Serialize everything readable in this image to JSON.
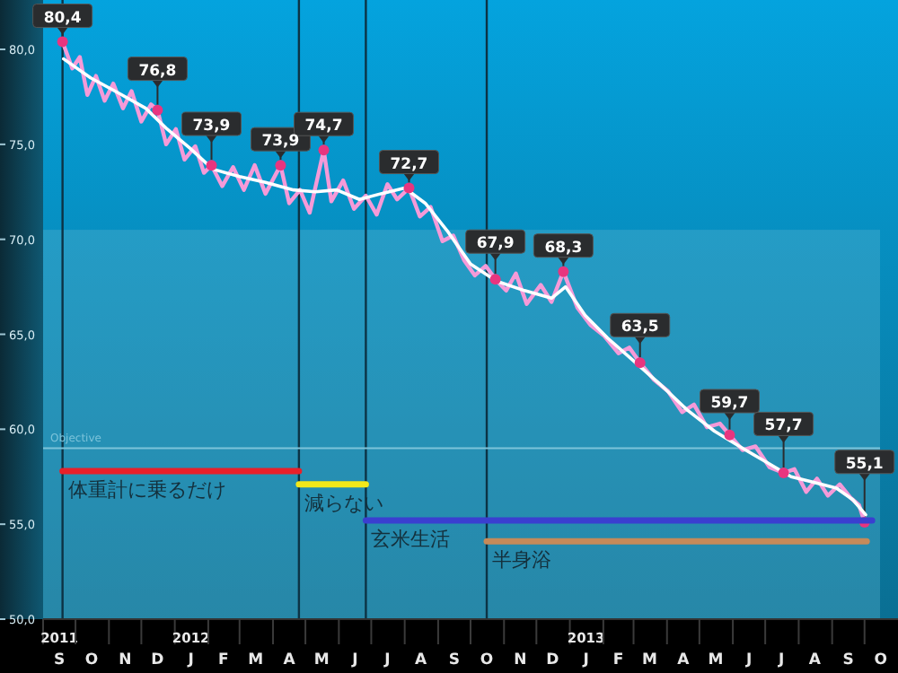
{
  "chart_data": {
    "type": "line",
    "xlim": [
      "2011-09-01",
      "2013-11-01"
    ],
    "ylim": [
      50,
      82.6
    ],
    "yticks": [
      {
        "value": 50,
        "label": "50,0"
      },
      {
        "value": 55,
        "label": "55,0"
      },
      {
        "value": 60,
        "label": "60,0"
      },
      {
        "value": 65,
        "label": "65,0"
      },
      {
        "value": 70,
        "label": "70,0"
      },
      {
        "value": 75,
        "label": "75,0"
      },
      {
        "value": 80,
        "label": "80,0"
      }
    ],
    "xticks": [
      {
        "value": "2011-09-16",
        "label": "2011\nS"
      },
      {
        "value": "2011-10-16",
        "label": "O"
      },
      {
        "value": "2011-11-16",
        "label": "N"
      },
      {
        "value": "2011-12-16",
        "label": "D"
      },
      {
        "value": "2012-01-16",
        "label": "2012\nJ"
      },
      {
        "value": "2012-02-15",
        "label": "F"
      },
      {
        "value": "2012-03-16",
        "label": "M"
      },
      {
        "value": "2012-04-16",
        "label": "A"
      },
      {
        "value": "2012-05-16",
        "label": "M"
      },
      {
        "value": "2012-06-16",
        "label": "J"
      },
      {
        "value": "2012-07-16",
        "label": "J"
      },
      {
        "value": "2012-08-16",
        "label": "A"
      },
      {
        "value": "2012-09-16",
        "label": "S"
      },
      {
        "value": "2012-10-16",
        "label": "O"
      },
      {
        "value": "2012-11-16",
        "label": "N"
      },
      {
        "value": "2012-12-16",
        "label": "D"
      },
      {
        "value": "2013-01-16",
        "label": "2013\nJ"
      },
      {
        "value": "2013-02-15",
        "label": "F"
      },
      {
        "value": "2013-03-16",
        "label": "M"
      },
      {
        "value": "2013-04-16",
        "label": "A"
      },
      {
        "value": "2013-05-16",
        "label": "M"
      },
      {
        "value": "2013-06-16",
        "label": "J"
      },
      {
        "value": "2013-07-16",
        "label": "J"
      },
      {
        "value": "2013-08-16",
        "label": "A"
      },
      {
        "value": "2013-09-16",
        "label": "S"
      },
      {
        "value": "2013-10-16",
        "label": "O"
      }
    ],
    "series": [
      {
        "color": "#f59ad8",
        "x": [
          "2011-09-19",
          "2011-09-28",
          "2011-10-05",
          "2011-10-12",
          "2011-10-20",
          "2011-10-28",
          "2011-11-05",
          "2011-11-14",
          "2011-11-22",
          "2011-12-01",
          "2011-12-10",
          "2011-12-16",
          "2011-12-24",
          "2012-01-02",
          "2012-01-10",
          "2012-01-20",
          "2012-01-28",
          "2012-02-04",
          "2012-02-14",
          "2012-02-24",
          "2012-03-05",
          "2012-03-15",
          "2012-03-25",
          "2012-04-08",
          "2012-04-16",
          "2012-04-26",
          "2012-05-05",
          "2012-05-18",
          "2012-05-25",
          "2012-06-05",
          "2012-06-15",
          "2012-06-26",
          "2012-07-06",
          "2012-07-16",
          "2012-07-25",
          "2012-08-05",
          "2012-08-15",
          "2012-08-25",
          "2012-09-05",
          "2012-09-15",
          "2012-09-25",
          "2012-10-05",
          "2012-10-15",
          "2012-10-24",
          "2012-11-03",
          "2012-11-12",
          "2012-11-22",
          "2012-12-05",
          "2012-12-15",
          "2012-12-26",
          "2013-01-08",
          "2013-01-20",
          "2013-02-02",
          "2013-02-15",
          "2013-02-25",
          "2013-03-07",
          "2013-03-20",
          "2013-04-02",
          "2013-04-15",
          "2013-04-26",
          "2013-05-08",
          "2013-05-20",
          "2013-05-29",
          "2013-06-10",
          "2013-06-22",
          "2013-07-05",
          "2013-07-18",
          "2013-07-28",
          "2013-08-08",
          "2013-08-18",
          "2013-08-28",
          "2013-09-08",
          "2013-09-18",
          "2013-09-26",
          "2013-10-01"
        ],
        "values": [
          80.4,
          79.0,
          79.6,
          77.6,
          78.6,
          77.3,
          78.2,
          76.9,
          77.8,
          76.2,
          77.1,
          76.8,
          75.0,
          75.8,
          74.2,
          74.9,
          73.5,
          73.9,
          72.8,
          73.8,
          72.6,
          73.9,
          72.4,
          73.9,
          71.9,
          72.6,
          71.4,
          74.7,
          72.0,
          73.1,
          71.6,
          72.3,
          71.3,
          72.9,
          72.1,
          72.7,
          71.2,
          71.7,
          69.9,
          70.2,
          68.9,
          68.1,
          68.6,
          67.9,
          67.3,
          68.2,
          66.6,
          67.6,
          66.7,
          68.3,
          66.4,
          65.5,
          64.9,
          64.0,
          64.3,
          63.5,
          62.6,
          62.0,
          60.9,
          61.3,
          60.1,
          60.3,
          59.7,
          58.9,
          59.1,
          58.0,
          57.7,
          57.9,
          56.7,
          57.4,
          56.5,
          57.1,
          56.4,
          56.0,
          55.1
        ]
      },
      {
        "color": "#ffffff",
        "x": [
          "2011-09-20",
          "2011-10-15",
          "2011-11-10",
          "2011-12-05",
          "2011-12-25",
          "2012-01-15",
          "2012-02-05",
          "2012-03-01",
          "2012-03-25",
          "2012-04-20",
          "2012-05-10",
          "2012-05-30",
          "2012-06-20",
          "2012-07-10",
          "2012-08-01",
          "2012-08-20",
          "2012-09-10",
          "2012-10-01",
          "2012-10-25",
          "2012-11-20",
          "2012-12-15",
          "2012-12-28",
          "2013-01-15",
          "2013-02-05",
          "2013-03-01",
          "2013-03-25",
          "2013-04-20",
          "2013-05-15",
          "2013-06-10",
          "2013-07-01",
          "2013-07-25",
          "2013-08-15",
          "2013-09-05",
          "2013-09-20",
          "2013-10-02"
        ],
        "values": [
          79.5,
          78.5,
          77.7,
          76.9,
          75.8,
          74.8,
          73.7,
          73.3,
          73.0,
          72.6,
          72.5,
          72.6,
          72.1,
          72.4,
          72.7,
          71.9,
          70.4,
          68.7,
          67.8,
          67.3,
          66.9,
          67.5,
          66.0,
          64.8,
          63.6,
          62.4,
          61.0,
          59.9,
          59.0,
          58.3,
          57.5,
          57.2,
          56.9,
          56.3,
          55.5
        ]
      },
      {
        "type": "scatter",
        "color": "#e8357f",
        "x": [
          "2011-09-19",
          "2011-12-16",
          "2012-02-04",
          "2012-04-08",
          "2012-05-18",
          "2012-08-05",
          "2012-10-24",
          "2012-12-26",
          "2013-03-07",
          "2013-05-29",
          "2013-07-18",
          "2013-10-01"
        ],
        "values": [
          80.4,
          76.8,
          73.9,
          73.9,
          74.7,
          72.7,
          67.9,
          68.3,
          63.5,
          59.7,
          57.7,
          55.1
        ],
        "value_labels": [
          "80,4",
          "76,8",
          "73,9",
          "73,9",
          "74,7",
          "72,7",
          "67,9",
          "68,3",
          "63,5",
          "59,7",
          "57,7",
          "55,1"
        ]
      },
      {
        "name": "体重計に乗るだけ",
        "color": "#e8202a",
        "x": [
          "2011-09-19",
          "2012-04-25"
        ],
        "values": [
          57.8,
          57.8
        ]
      },
      {
        "name": "減らない",
        "color": "#f2e81a",
        "x": [
          "2012-04-25",
          "2012-06-26"
        ],
        "values": [
          57.1,
          57.1
        ]
      },
      {
        "name": "玄米生活",
        "color": "#3a3fd0",
        "x": [
          "2012-06-26",
          "2013-10-08"
        ],
        "values": [
          55.2,
          55.2
        ]
      },
      {
        "name": "半身浴",
        "color": "#c58a5a",
        "x": [
          "2012-10-16",
          "2013-10-03"
        ],
        "values": [
          54.1,
          54.1
        ]
      }
    ],
    "ref_lines": [
      {
        "axis": "x",
        "value": "2011-09-19",
        "color": "#0c3345"
      },
      {
        "axis": "x",
        "value": "2012-04-25",
        "color": "#0c3345"
      },
      {
        "axis": "x",
        "value": "2012-06-26",
        "color": "#0c3345"
      },
      {
        "axis": "x",
        "value": "2012-10-16",
        "color": "#0c3345"
      },
      {
        "axis": "y",
        "value": 59,
        "label": "Objective",
        "color": "#7cc3da"
      }
    ],
    "bands": [
      {
        "axis": "y",
        "from": 50,
        "to": 70.5,
        "color": "#5fb4cf"
      }
    ],
    "grid": false,
    "legend": false,
    "line_style": "solid"
  }
}
